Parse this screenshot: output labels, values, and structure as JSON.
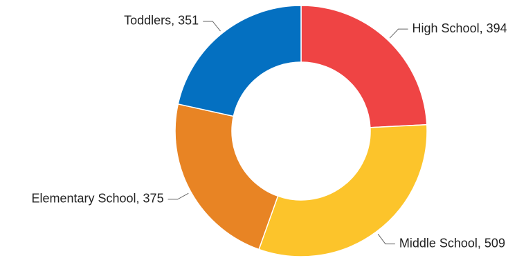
{
  "chart_data": {
    "type": "pie",
    "donut": true,
    "start": "top",
    "direction": "clockwise",
    "labels_format": "{category}, {value}",
    "slices": [
      {
        "category": "High School",
        "value": 394,
        "color": "#ef4444",
        "label": "High School, 394"
      },
      {
        "category": "Middle School",
        "value": 509,
        "color": "#fcc42b",
        "label": "Middle School, 509"
      },
      {
        "category": "Elementary School",
        "value": 375,
        "color": "#e88424",
        "label": "Elementary School, 375"
      },
      {
        "category": "Toddlers",
        "value": 351,
        "color": "#0470c1",
        "label": "Toddlers, 351"
      }
    ]
  }
}
